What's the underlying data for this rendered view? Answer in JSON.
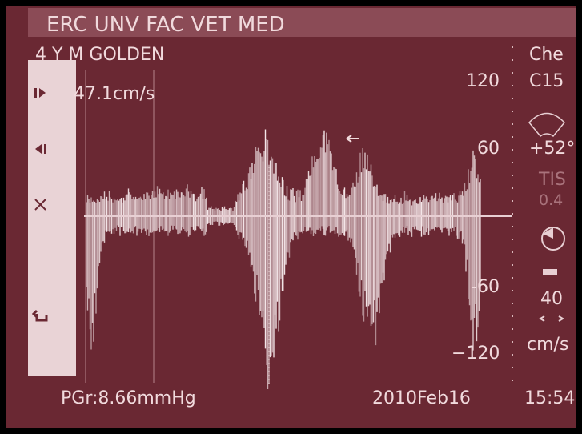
{
  "header": {
    "title": "ERC UNV FAC VET MED",
    "patient": "4 Y M GOLDEN"
  },
  "velocity": "47.1cm/s",
  "scale": [
    "120",
    "60",
    "-60",
    "−120"
  ],
  "side_panel": {
    "probe": "Che",
    "transducer": "C15",
    "angle": "+52°",
    "tis_label": "TIS",
    "tis_value": "0.4",
    "sweep": "40",
    "unit": "cm/s"
  },
  "footer": {
    "gradient": "PGr:8.66mmHg",
    "date": "2010Feb16",
    "time": "15:54"
  }
}
